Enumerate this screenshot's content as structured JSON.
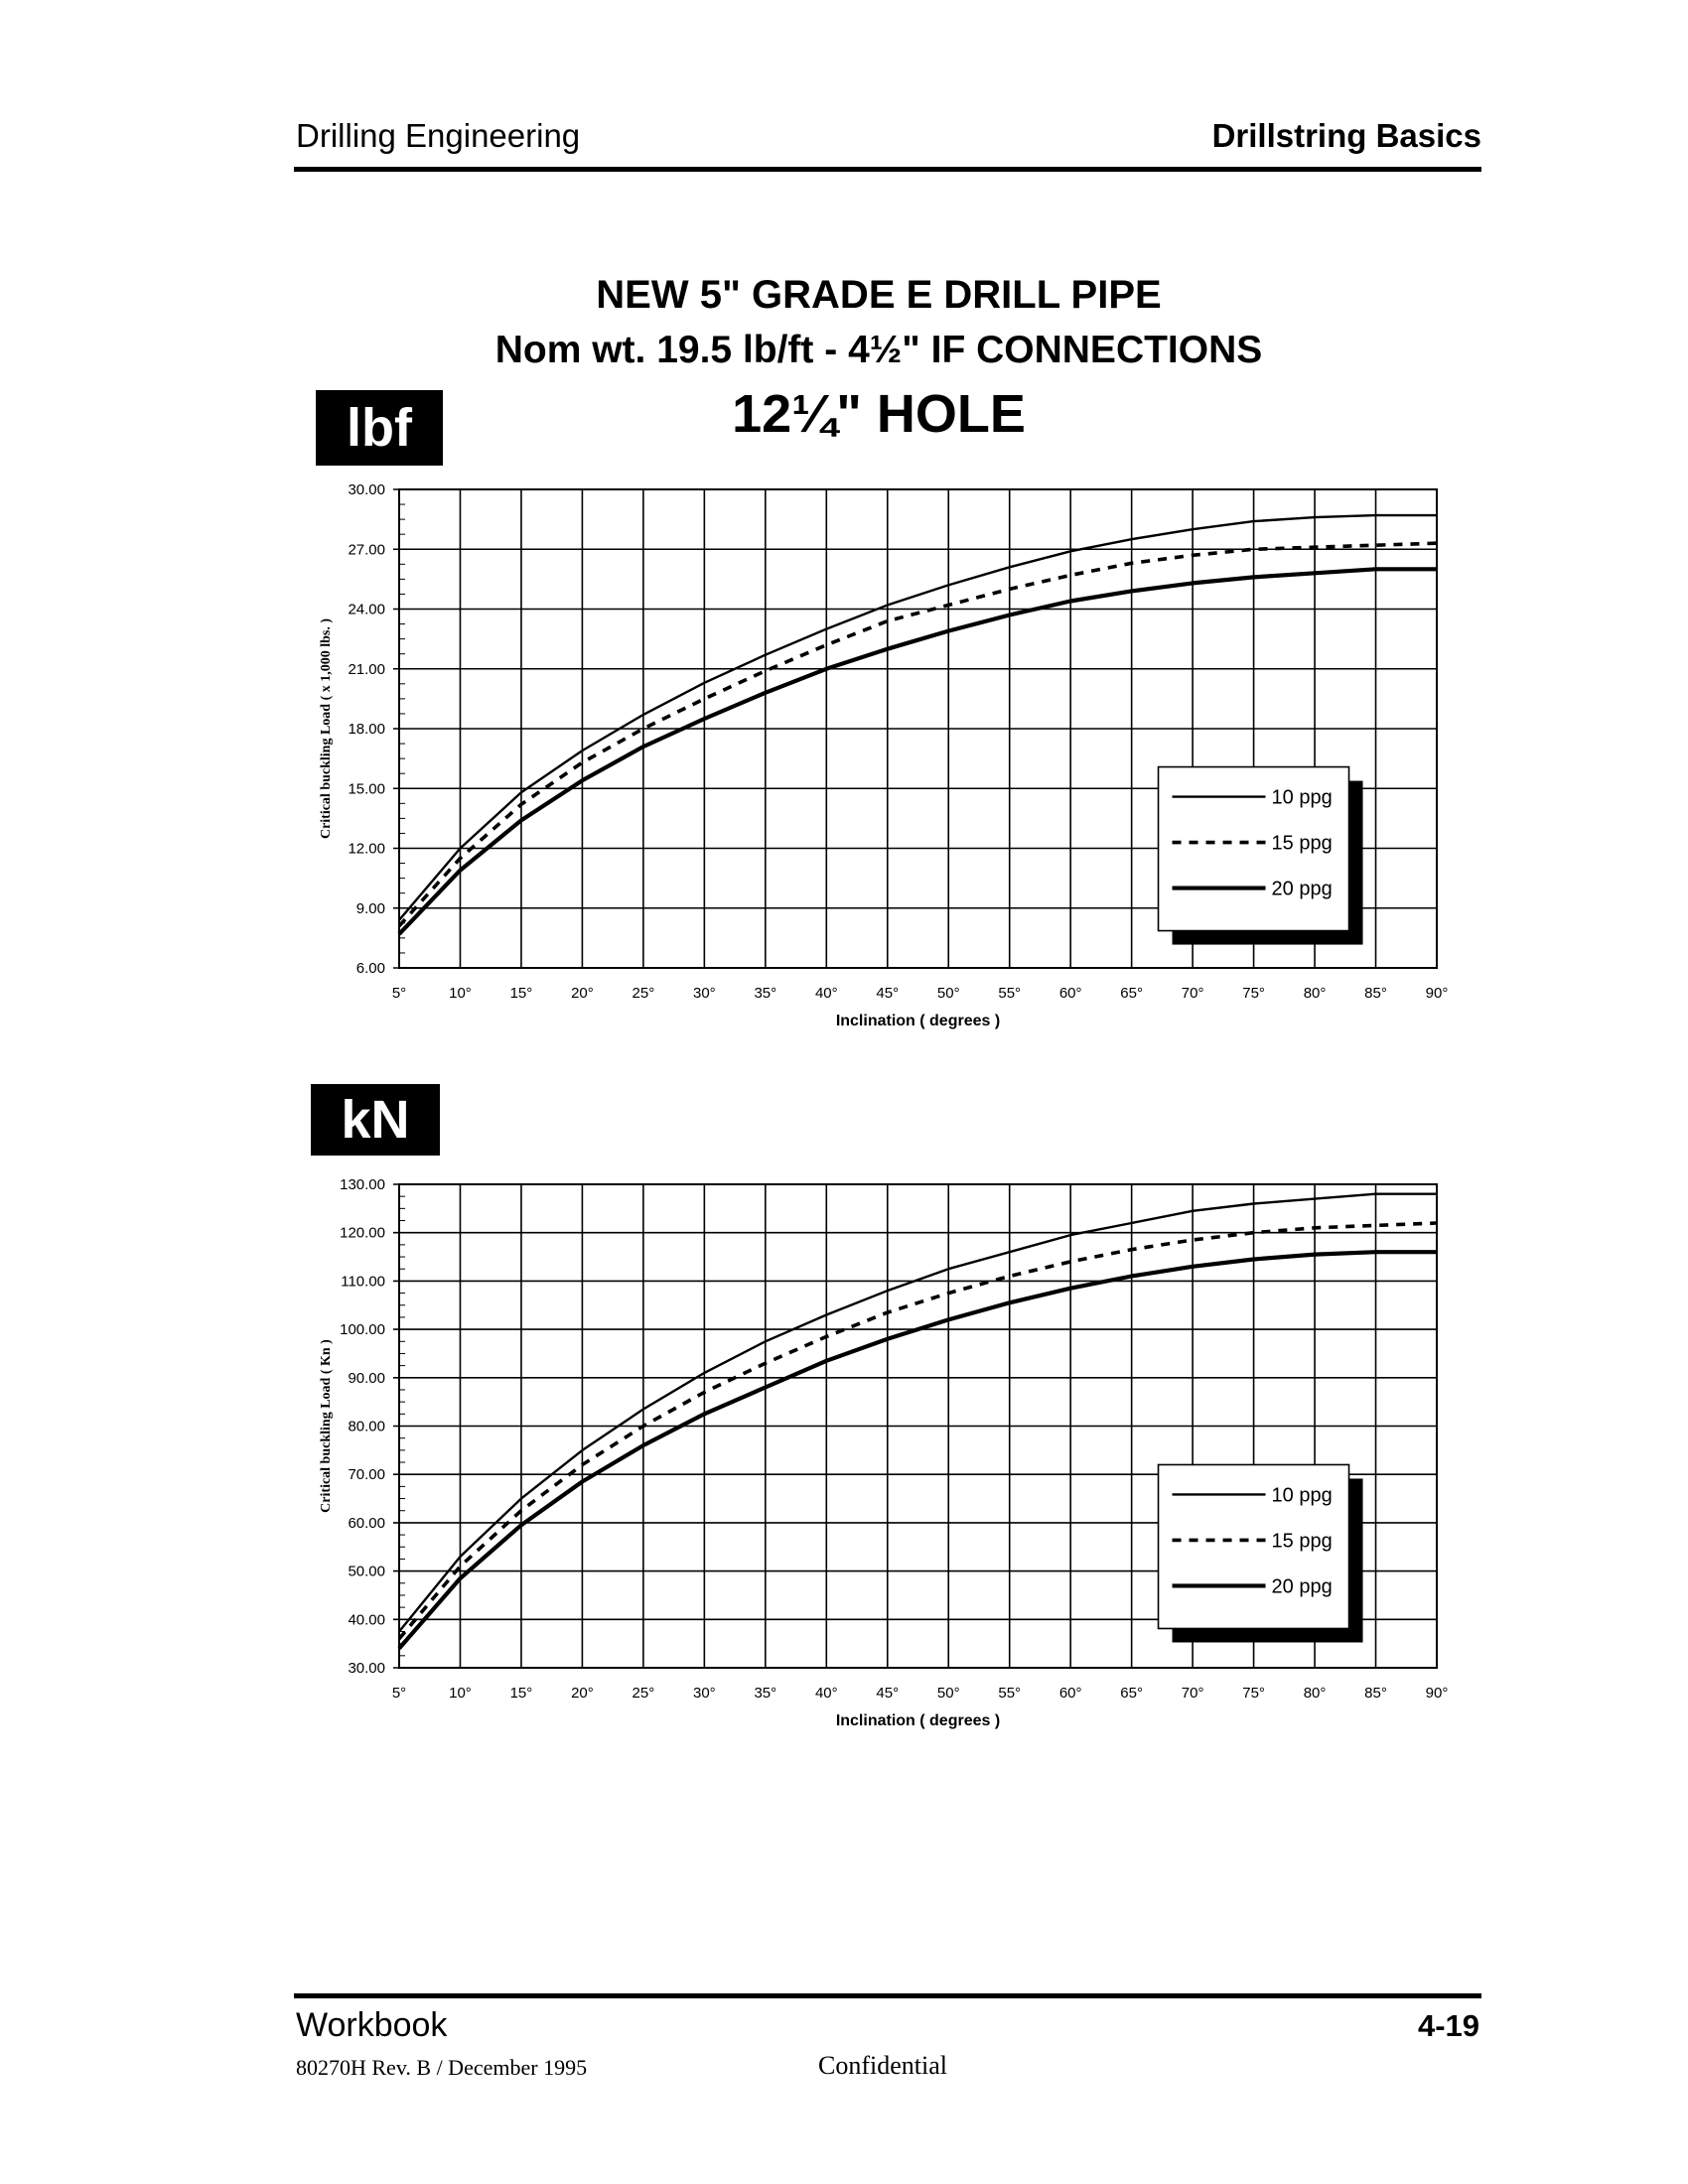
{
  "header": {
    "left": "Drilling Engineering",
    "right": "Drillstring Basics"
  },
  "title": {
    "line1": "NEW 5\" GRADE  E  DRILL PIPE",
    "line2": "Nom wt. 19.5 lb/ft  -   4½\" IF CONNECTIONS",
    "line3": "12¼\" HOLE"
  },
  "units": {
    "lbf": "lbf",
    "kn": "kN"
  },
  "chart_data": [
    {
      "type": "line",
      "title": "",
      "xlabel": "Inclination  ( degrees )",
      "ylabel": "Critical buckling Load  ( x 1,000 lbs. )",
      "xlim": [
        5,
        90
      ],
      "ylim": [
        6,
        30
      ],
      "x": [
        5,
        10,
        15,
        20,
        25,
        30,
        35,
        40,
        45,
        50,
        55,
        60,
        65,
        70,
        75,
        80,
        85,
        90
      ],
      "x_tick_labels": [
        "5°",
        "10°",
        "15°",
        "20°",
        "25°",
        "30°",
        "35°",
        "40°",
        "45°",
        "50°",
        "55°",
        "60°",
        "65°",
        "70°",
        "75°",
        "80°",
        "85°",
        "90°"
      ],
      "y_ticks": [
        6,
        9,
        12,
        15,
        18,
        21,
        24,
        27,
        30
      ],
      "y_tick_labels": [
        "6.00",
        "9.00",
        "12.00",
        "15.00",
        "18.00",
        "21.00",
        "24.00",
        "27.00",
        "30.00"
      ],
      "grid": true,
      "legend_position": "right",
      "series": [
        {
          "name": "10 ppg",
          "style": "solid-thin",
          "values": [
            8.4,
            12.0,
            14.8,
            16.9,
            18.7,
            20.3,
            21.7,
            23.0,
            24.2,
            25.2,
            26.1,
            26.9,
            27.5,
            28.0,
            28.4,
            28.6,
            28.7,
            28.7
          ]
        },
        {
          "name": "15 ppg",
          "style": "dashed",
          "values": [
            8.1,
            11.5,
            14.2,
            16.3,
            18.0,
            19.5,
            20.9,
            22.2,
            23.4,
            24.2,
            25.0,
            25.7,
            26.3,
            26.7,
            27.0,
            27.1,
            27.2,
            27.3
          ]
        },
        {
          "name": "20 ppg",
          "style": "solid-thick",
          "values": [
            7.7,
            10.9,
            13.4,
            15.4,
            17.1,
            18.5,
            19.8,
            21.0,
            22.0,
            22.9,
            23.7,
            24.4,
            24.9,
            25.3,
            25.6,
            25.8,
            26.0,
            26.0
          ]
        }
      ]
    },
    {
      "type": "line",
      "title": "",
      "xlabel": "Inclination  ( degrees )",
      "ylabel": "Critical buckling Load  ( Kn )",
      "xlim": [
        5,
        90
      ],
      "ylim": [
        30,
        130
      ],
      "x": [
        5,
        10,
        15,
        20,
        25,
        30,
        35,
        40,
        45,
        50,
        55,
        60,
        65,
        70,
        75,
        80,
        85,
        90
      ],
      "x_tick_labels": [
        "5°",
        "10°",
        "15°",
        "20°",
        "25°",
        "30°",
        "35°",
        "40°",
        "45°",
        "50°",
        "55°",
        "60°",
        "65°",
        "70°",
        "75°",
        "80°",
        "85°",
        "90°"
      ],
      "y_ticks": [
        30,
        40,
        50,
        60,
        70,
        80,
        90,
        100,
        110,
        120,
        130
      ],
      "y_tick_labels": [
        "30.00",
        "40.00",
        "50.00",
        "60.00",
        "70.00",
        "80.00",
        "90.00",
        "100.00",
        "110.00",
        "120.00",
        "130.00"
      ],
      "grid": true,
      "legend_position": "right",
      "series": [
        {
          "name": "10 ppg",
          "style": "solid-thin",
          "values": [
            37.5,
            53.0,
            65.0,
            75.0,
            83.5,
            91.0,
            97.5,
            103.0,
            108.0,
            112.5,
            116.0,
            119.5,
            122.0,
            124.5,
            126.0,
            127.0,
            128.0,
            128.0
          ]
        },
        {
          "name": "15 ppg",
          "style": "dashed",
          "values": [
            36.0,
            51.0,
            62.5,
            72.0,
            80.0,
            87.0,
            93.0,
            98.5,
            103.5,
            107.5,
            111.0,
            114.0,
            116.5,
            118.5,
            120.0,
            121.0,
            121.5,
            122.0
          ]
        },
        {
          "name": "20 ppg",
          "style": "solid-thick",
          "values": [
            34.0,
            48.5,
            59.5,
            68.5,
            76.0,
            82.5,
            88.0,
            93.5,
            98.0,
            102.0,
            105.5,
            108.5,
            111.0,
            113.0,
            114.5,
            115.5,
            116.0,
            116.0
          ]
        }
      ]
    }
  ],
  "footer": {
    "left": "Workbook",
    "right": "4-19",
    "doc": "80270H Rev. B / December 1995",
    "confidential": "Confidential"
  }
}
